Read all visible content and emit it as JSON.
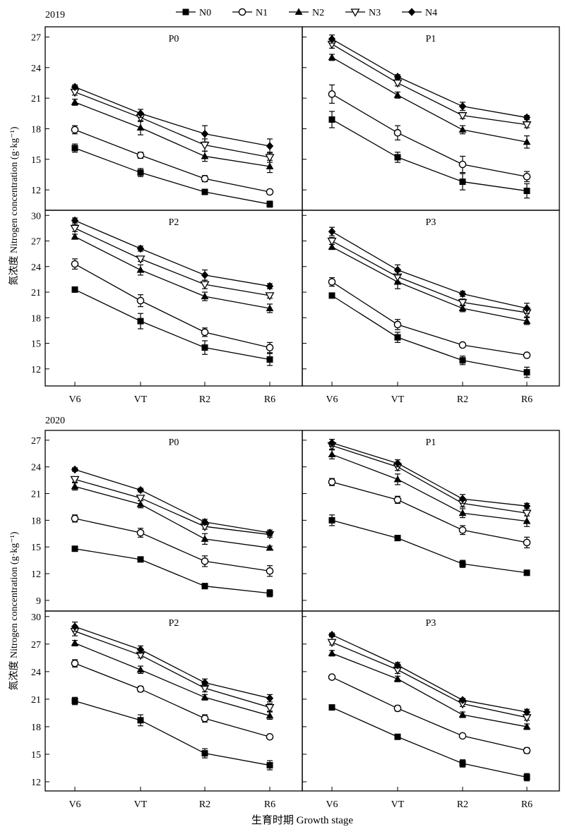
{
  "figure": {
    "legend": [
      "N0",
      "N1",
      "N2",
      "N3",
      "N4"
    ],
    "xlabel": "生育时期 Growth stage",
    "ylabel": "氮浓度 Nitrogen concentration (g·kg⁻¹)"
  },
  "chart_data": [
    {
      "type": "line",
      "year": "2019",
      "panels": [
        {
          "title": "P0",
          "categories": [
            "V6",
            "VT",
            "R2",
            "R6"
          ],
          "ylim": [
            10,
            28
          ],
          "yticks": [
            12,
            15,
            18,
            21,
            24,
            27
          ],
          "series": [
            {
              "name": "N0",
              "values": [
                16.1,
                13.7,
                11.8,
                10.6
              ],
              "errors": [
                0.4,
                0.4,
                0.2,
                0.3
              ]
            },
            {
              "name": "N1",
              "values": [
                17.9,
                15.4,
                13.1,
                11.8
              ],
              "errors": [
                0.4,
                0.3,
                0.3,
                0.2
              ]
            },
            {
              "name": "N2",
              "values": [
                20.6,
                18.1,
                15.3,
                14.3
              ],
              "errors": [
                0.3,
                0.7,
                0.5,
                0.6
              ]
            },
            {
              "name": "N3",
              "values": [
                21.6,
                19.1,
                16.4,
                15.2
              ],
              "errors": [
                0.3,
                0.4,
                0.6,
                0.5
              ]
            },
            {
              "name": "N4",
              "values": [
                22.1,
                19.5,
                17.5,
                16.3
              ],
              "errors": [
                0.2,
                0.4,
                0.8,
                0.7
              ]
            }
          ]
        },
        {
          "title": "P1",
          "categories": [
            "V6",
            "VT",
            "R2",
            "R6"
          ],
          "ylim": [
            10,
            28
          ],
          "yticks": [
            12,
            15,
            18,
            21,
            24,
            27
          ],
          "series": [
            {
              "name": "N0",
              "values": [
                18.9,
                15.2,
                12.8,
                11.9
              ],
              "errors": [
                0.8,
                0.5,
                0.8,
                0.7
              ]
            },
            {
              "name": "N1",
              "values": [
                21.4,
                17.6,
                14.5,
                13.3
              ],
              "errors": [
                0.9,
                0.7,
                0.8,
                0.5
              ]
            },
            {
              "name": "N2",
              "values": [
                25.0,
                21.3,
                17.9,
                16.7
              ],
              "errors": [
                0.3,
                0.3,
                0.4,
                0.6
              ]
            },
            {
              "name": "N3",
              "values": [
                26.3,
                22.5,
                19.3,
                18.4
              ],
              "errors": [
                0.4,
                0.3,
                0.3,
                0.3
              ]
            },
            {
              "name": "N4",
              "values": [
                26.8,
                23.1,
                20.2,
                19.1
              ],
              "errors": [
                0.4,
                0.2,
                0.4,
                0.2
              ]
            }
          ]
        },
        {
          "title": "P2",
          "categories": [
            "V6",
            "VT",
            "R2",
            "R6"
          ],
          "ylim": [
            10,
            30.6
          ],
          "yticks": [
            12,
            15,
            18,
            21,
            24,
            27,
            30
          ],
          "series": [
            {
              "name": "N0",
              "values": [
                21.3,
                17.6,
                14.5,
                13.1
              ],
              "errors": [
                0.2,
                0.9,
                0.8,
                0.7
              ]
            },
            {
              "name": "N1",
              "values": [
                24.3,
                20.0,
                16.3,
                14.5
              ],
              "errors": [
                0.6,
                0.7,
                0.5,
                0.6
              ]
            },
            {
              "name": "N2",
              "values": [
                27.5,
                23.6,
                20.5,
                19.1
              ],
              "errors": [
                0.3,
                0.6,
                0.5,
                0.5
              ]
            },
            {
              "name": "N3",
              "values": [
                28.5,
                24.9,
                21.9,
                20.6
              ],
              "errors": [
                0.4,
                0.3,
                0.5,
                0.3
              ]
            },
            {
              "name": "N4",
              "values": [
                29.4,
                26.1,
                23.0,
                21.7
              ],
              "errors": [
                0.3,
                0.3,
                0.6,
                0.3
              ]
            }
          ]
        },
        {
          "title": "P3",
          "categories": [
            "V6",
            "VT",
            "R2",
            "R6"
          ],
          "ylim": [
            10,
            30.6
          ],
          "yticks": [
            12,
            15,
            18,
            21,
            24,
            27,
            30
          ],
          "series": [
            {
              "name": "N0",
              "values": [
                20.6,
                15.7,
                13.0,
                11.6
              ],
              "errors": [
                0.3,
                0.6,
                0.5,
                0.6
              ]
            },
            {
              "name": "N1",
              "values": [
                22.2,
                17.2,
                14.8,
                13.6
              ],
              "errors": [
                0.5,
                0.6,
                0.2,
                0.2
              ]
            },
            {
              "name": "N2",
              "values": [
                26.3,
                22.2,
                19.1,
                17.6
              ],
              "errors": [
                0.3,
                0.8,
                0.4,
                0.4
              ]
            },
            {
              "name": "N3",
              "values": [
                27.0,
                22.8,
                19.8,
                18.6
              ],
              "errors": [
                0.4,
                0.6,
                0.4,
                0.5
              ]
            },
            {
              "name": "N4",
              "values": [
                28.1,
                23.6,
                20.8,
                19.1
              ],
              "errors": [
                0.5,
                0.6,
                0.3,
                0.6
              ]
            }
          ]
        }
      ]
    },
    {
      "type": "line",
      "year": "2020",
      "panels": [
        {
          "title": "P0",
          "categories": [
            "V6",
            "VT",
            "R2",
            "R6"
          ],
          "ylim": [
            7.8,
            28.1
          ],
          "yticks": [
            9,
            12,
            15,
            18,
            21,
            24,
            27
          ],
          "series": [
            {
              "name": "N0",
              "values": [
                14.8,
                13.6,
                10.6,
                9.8
              ],
              "errors": [
                0.2,
                0.2,
                0.3,
                0.4
              ]
            },
            {
              "name": "N1",
              "values": [
                18.2,
                16.6,
                13.4,
                12.3
              ],
              "errors": [
                0.4,
                0.5,
                0.6,
                0.6
              ]
            },
            {
              "name": "N2",
              "values": [
                21.8,
                19.8,
                15.9,
                14.9
              ],
              "errors": [
                0.4,
                0.4,
                0.6,
                0.2
              ]
            },
            {
              "name": "N3",
              "values": [
                22.6,
                20.5,
                17.3,
                16.4
              ],
              "errors": [
                0.3,
                0.3,
                0.3,
                0.3
              ]
            },
            {
              "name": "N4",
              "values": [
                23.7,
                21.4,
                17.8,
                16.6
              ],
              "errors": [
                0.2,
                0.2,
                0.3,
                0.3
              ]
            }
          ]
        },
        {
          "title": "P1",
          "categories": [
            "V6",
            "VT",
            "R2",
            "R6"
          ],
          "ylim": [
            7.8,
            28.1
          ],
          "yticks": [
            9,
            12,
            15,
            18,
            21,
            24,
            27
          ],
          "series": [
            {
              "name": "N0",
              "values": [
                18.0,
                16.0,
                13.1,
                12.1
              ],
              "errors": [
                0.6,
                0.3,
                0.4,
                0.3
              ]
            },
            {
              "name": "N1",
              "values": [
                22.3,
                20.3,
                16.9,
                15.5
              ],
              "errors": [
                0.4,
                0.4,
                0.5,
                0.6
              ]
            },
            {
              "name": "N2",
              "values": [
                25.4,
                22.6,
                18.8,
                17.9
              ],
              "errors": [
                0.5,
                0.6,
                0.5,
                0.6
              ]
            },
            {
              "name": "N3",
              "values": [
                26.4,
                24.0,
                19.9,
                18.8
              ],
              "errors": [
                0.4,
                0.4,
                0.4,
                0.3
              ]
            },
            {
              "name": "N4",
              "values": [
                26.7,
                24.4,
                20.4,
                19.6
              ],
              "errors": [
                0.4,
                0.4,
                0.5,
                0.3
              ]
            }
          ]
        },
        {
          "title": "P2",
          "categories": [
            "V6",
            "VT",
            "R2",
            "R6"
          ],
          "ylim": [
            11,
            30.6
          ],
          "yticks": [
            12,
            15,
            18,
            21,
            24,
            27,
            30
          ],
          "series": [
            {
              "name": "N0",
              "values": [
                20.8,
                18.7,
                15.1,
                13.8
              ],
              "errors": [
                0.4,
                0.6,
                0.5,
                0.5
              ]
            },
            {
              "name": "N1",
              "values": [
                24.9,
                22.1,
                18.9,
                16.9
              ],
              "errors": [
                0.4,
                0.3,
                0.4,
                0.2
              ]
            },
            {
              "name": "N2",
              "values": [
                27.1,
                24.2,
                21.2,
                19.2
              ],
              "errors": [
                0.3,
                0.4,
                0.3,
                0.4
              ]
            },
            {
              "name": "N3",
              "values": [
                28.4,
                25.8,
                22.2,
                20.1
              ],
              "errors": [
                0.5,
                0.3,
                0.4,
                0.4
              ]
            },
            {
              "name": "N4",
              "values": [
                28.9,
                26.4,
                22.8,
                21.1
              ],
              "errors": [
                0.5,
                0.4,
                0.4,
                0.4
              ]
            }
          ]
        },
        {
          "title": "P3",
          "categories": [
            "V6",
            "VT",
            "R2",
            "R6"
          ],
          "ylim": [
            11,
            30.6
          ],
          "yticks": [
            12,
            15,
            18,
            21,
            24,
            27,
            30
          ],
          "series": [
            {
              "name": "N0",
              "values": [
                20.1,
                16.9,
                14.0,
                12.5
              ],
              "errors": [
                0.2,
                0.2,
                0.4,
                0.4
              ]
            },
            {
              "name": "N1",
              "values": [
                23.4,
                20.0,
                17.0,
                15.4
              ],
              "errors": [
                0.2,
                0.3,
                0.2,
                0.3
              ]
            },
            {
              "name": "N2",
              "values": [
                26.0,
                23.2,
                19.3,
                18.0
              ],
              "errors": [
                0.3,
                0.3,
                0.3,
                0.3
              ]
            },
            {
              "name": "N3",
              "values": [
                27.2,
                24.2,
                20.5,
                19.0
              ],
              "errors": [
                0.3,
                0.4,
                0.3,
                0.3
              ]
            },
            {
              "name": "N4",
              "values": [
                28.0,
                24.7,
                20.9,
                19.6
              ],
              "errors": [
                0.2,
                0.3,
                0.2,
                0.3
              ]
            }
          ]
        }
      ]
    }
  ]
}
